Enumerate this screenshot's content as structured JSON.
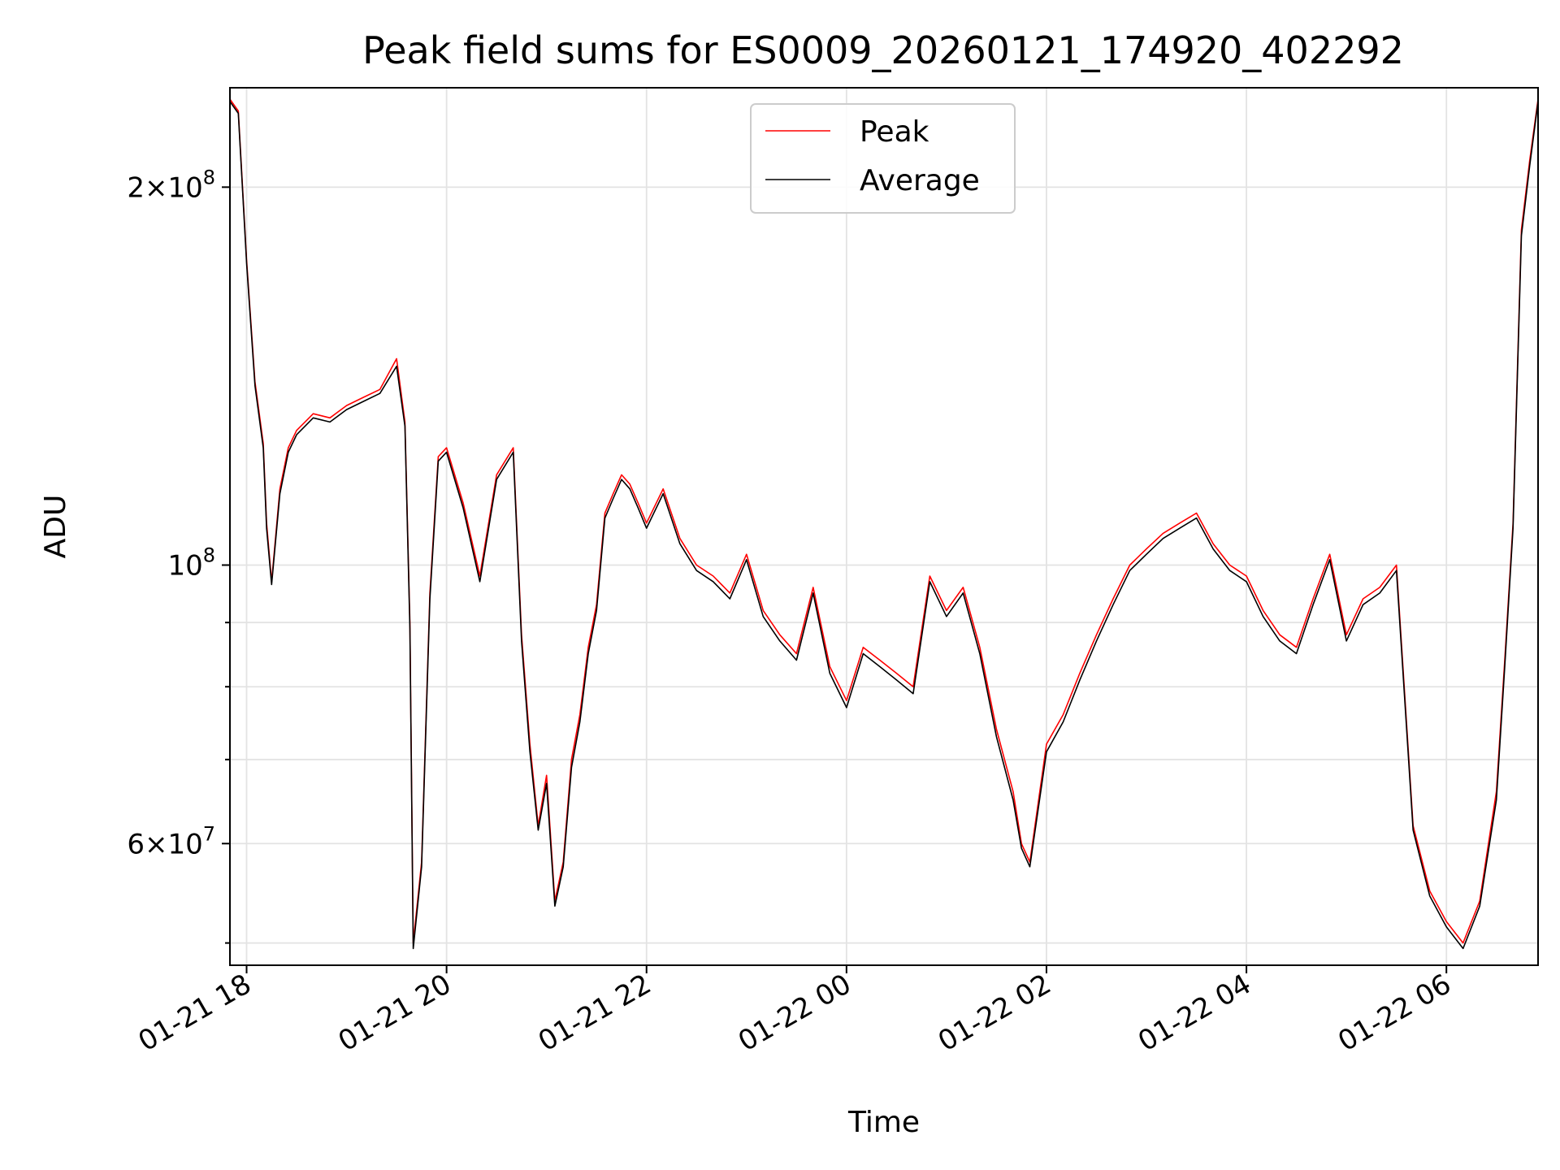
{
  "chart_data": {
    "type": "line",
    "title": "Peak field sums for ES0009_20260121_174920_402292",
    "xlabel": "Time",
    "ylabel": "ADU",
    "yscale": "log",
    "ylim": [
      48000000,
      240000000
    ],
    "xlim": [
      "2026-01-21T17:50",
      "2026-01-22T06:55"
    ],
    "grid": true,
    "legend_position": "top-center",
    "x_ticks": [
      {
        "t": "2026-01-21T18:00",
        "label": "01-21 18"
      },
      {
        "t": "2026-01-21T20:00",
        "label": "01-21 20"
      },
      {
        "t": "2026-01-21T22:00",
        "label": "01-21 22"
      },
      {
        "t": "2026-01-22T00:00",
        "label": "01-22 00"
      },
      {
        "t": "2026-01-22T02:00",
        "label": "01-22 02"
      },
      {
        "t": "2026-01-22T04:00",
        "label": "01-22 04"
      },
      {
        "t": "2026-01-22T06:00",
        "label": "01-22 06"
      }
    ],
    "y_major_ticks": [
      {
        "v": 60000000,
        "mant": "6",
        "exp": "7"
      },
      {
        "v": 100000000,
        "mant": "",
        "exp": "8"
      },
      {
        "v": 200000000,
        "mant": "2",
        "exp": "8"
      }
    ],
    "y_minor_ticks": [
      50000000,
      70000000,
      80000000,
      90000000
    ],
    "series": [
      {
        "name": "Peak",
        "color": "#ff0000",
        "x": [
          "2026-01-21T17:50",
          "2026-01-21T17:55",
          "2026-01-21T18:00",
          "2026-01-21T18:05",
          "2026-01-21T18:10",
          "2026-01-21T18:12",
          "2026-01-21T18:15",
          "2026-01-21T18:20",
          "2026-01-21T18:25",
          "2026-01-21T18:30",
          "2026-01-21T18:40",
          "2026-01-21T18:50",
          "2026-01-21T19:00",
          "2026-01-21T19:10",
          "2026-01-21T19:20",
          "2026-01-21T19:30",
          "2026-01-21T19:35",
          "2026-01-21T19:38",
          "2026-01-21T19:40",
          "2026-01-21T19:45",
          "2026-01-21T19:50",
          "2026-01-21T19:55",
          "2026-01-21T20:00",
          "2026-01-21T20:10",
          "2026-01-21T20:20",
          "2026-01-21T20:30",
          "2026-01-21T20:40",
          "2026-01-21T20:45",
          "2026-01-21T20:50",
          "2026-01-21T20:55",
          "2026-01-21T21:00",
          "2026-01-21T21:05",
          "2026-01-21T21:10",
          "2026-01-21T21:15",
          "2026-01-21T21:20",
          "2026-01-21T21:25",
          "2026-01-21T21:30",
          "2026-01-21T21:35",
          "2026-01-21T21:40",
          "2026-01-21T21:45",
          "2026-01-21T21:50",
          "2026-01-21T21:55",
          "2026-01-21T22:00",
          "2026-01-21T22:10",
          "2026-01-21T22:20",
          "2026-01-21T22:30",
          "2026-01-21T22:40",
          "2026-01-21T22:50",
          "2026-01-21T23:00",
          "2026-01-21T23:10",
          "2026-01-21T23:20",
          "2026-01-21T23:30",
          "2026-01-21T23:40",
          "2026-01-21T23:50",
          "2026-01-22T00:00",
          "2026-01-22T00:10",
          "2026-01-22T00:20",
          "2026-01-22T00:30",
          "2026-01-22T00:40",
          "2026-01-22T00:50",
          "2026-01-22T01:00",
          "2026-01-22T01:10",
          "2026-01-22T01:20",
          "2026-01-22T01:30",
          "2026-01-22T01:40",
          "2026-01-22T01:45",
          "2026-01-22T01:50",
          "2026-01-22T02:00",
          "2026-01-22T02:10",
          "2026-01-22T02:20",
          "2026-01-22T02:30",
          "2026-01-22T02:40",
          "2026-01-22T02:50",
          "2026-01-22T03:00",
          "2026-01-22T03:10",
          "2026-01-22T03:20",
          "2026-01-22T03:30",
          "2026-01-22T03:40",
          "2026-01-22T03:50",
          "2026-01-22T04:00",
          "2026-01-22T04:10",
          "2026-01-22T04:20",
          "2026-01-22T04:30",
          "2026-01-22T04:40",
          "2026-01-22T04:50",
          "2026-01-22T05:00",
          "2026-01-22T05:10",
          "2026-01-22T05:20",
          "2026-01-22T05:30",
          "2026-01-22T05:40",
          "2026-01-22T05:50",
          "2026-01-22T06:00",
          "2026-01-22T06:10",
          "2026-01-22T06:20",
          "2026-01-22T06:30",
          "2026-01-22T06:35",
          "2026-01-22T06:40",
          "2026-01-22T06:45",
          "2026-01-22T06:50",
          "2026-01-22T06:55"
        ],
        "y": [
          235000000,
          230000000,
          175000000,
          140000000,
          125000000,
          108000000,
          97000000,
          115000000,
          124000000,
          128000000,
          132000000,
          131000000,
          134000000,
          136000000,
          138000000,
          146000000,
          130000000,
          90000000,
          50000000,
          58000000,
          95000000,
          122000000,
          124000000,
          112000000,
          98000000,
          118000000,
          124000000,
          88000000,
          72000000,
          62000000,
          68000000,
          54000000,
          58000000,
          70000000,
          76000000,
          86000000,
          93000000,
          110000000,
          114000000,
          118000000,
          116000000,
          112000000,
          108000000,
          115000000,
          105000000,
          100000000,
          98000000,
          95000000,
          102000000,
          92000000,
          88000000,
          85000000,
          96000000,
          83000000,
          78000000,
          86000000,
          84000000,
          82000000,
          80000000,
          98000000,
          92000000,
          96000000,
          86000000,
          74000000,
          66000000,
          60000000,
          58000000,
          72000000,
          76000000,
          82000000,
          88000000,
          94000000,
          100000000,
          103000000,
          106000000,
          108000000,
          110000000,
          104000000,
          100000000,
          98000000,
          92000000,
          88000000,
          86000000,
          94000000,
          102000000,
          88000000,
          94000000,
          96000000,
          100000000,
          62000000,
          55000000,
          52000000,
          50000000,
          54000000,
          66000000,
          84000000,
          108000000,
          185000000,
          210000000,
          235000000
        ]
      },
      {
        "name": "Average",
        "color": "#000000",
        "x": [
          "2026-01-21T17:50",
          "2026-01-21T17:55",
          "2026-01-21T18:00",
          "2026-01-21T18:05",
          "2026-01-21T18:10",
          "2026-01-21T18:12",
          "2026-01-21T18:15",
          "2026-01-21T18:20",
          "2026-01-21T18:25",
          "2026-01-21T18:30",
          "2026-01-21T18:40",
          "2026-01-21T18:50",
          "2026-01-21T19:00",
          "2026-01-21T19:10",
          "2026-01-21T19:20",
          "2026-01-21T19:30",
          "2026-01-21T19:35",
          "2026-01-21T19:38",
          "2026-01-21T19:40",
          "2026-01-21T19:45",
          "2026-01-21T19:50",
          "2026-01-21T19:55",
          "2026-01-21T20:00",
          "2026-01-21T20:10",
          "2026-01-21T20:20",
          "2026-01-21T20:30",
          "2026-01-21T20:40",
          "2026-01-21T20:45",
          "2026-01-21T20:50",
          "2026-01-21T20:55",
          "2026-01-21T21:00",
          "2026-01-21T21:05",
          "2026-01-21T21:10",
          "2026-01-21T21:15",
          "2026-01-21T21:20",
          "2026-01-21T21:25",
          "2026-01-21T21:30",
          "2026-01-21T21:35",
          "2026-01-21T21:40",
          "2026-01-21T21:45",
          "2026-01-21T21:50",
          "2026-01-21T21:55",
          "2026-01-21T22:00",
          "2026-01-21T22:10",
          "2026-01-21T22:20",
          "2026-01-21T22:30",
          "2026-01-21T22:40",
          "2026-01-21T22:50",
          "2026-01-21T23:00",
          "2026-01-21T23:10",
          "2026-01-21T23:20",
          "2026-01-21T23:30",
          "2026-01-21T23:40",
          "2026-01-21T23:50",
          "2026-01-22T00:00",
          "2026-01-22T00:10",
          "2026-01-22T00:20",
          "2026-01-22T00:30",
          "2026-01-22T00:40",
          "2026-01-22T00:50",
          "2026-01-22T01:00",
          "2026-01-22T01:10",
          "2026-01-22T01:20",
          "2026-01-22T01:30",
          "2026-01-22T01:40",
          "2026-01-22T01:45",
          "2026-01-22T01:50",
          "2026-01-22T02:00",
          "2026-01-22T02:10",
          "2026-01-22T02:20",
          "2026-01-22T02:30",
          "2026-01-22T02:40",
          "2026-01-22T02:50",
          "2026-01-22T03:00",
          "2026-01-22T03:10",
          "2026-01-22T03:20",
          "2026-01-22T03:30",
          "2026-01-22T03:40",
          "2026-01-22T03:50",
          "2026-01-22T04:00",
          "2026-01-22T04:10",
          "2026-01-22T04:20",
          "2026-01-22T04:30",
          "2026-01-22T04:40",
          "2026-01-22T04:50",
          "2026-01-22T05:00",
          "2026-01-22T05:10",
          "2026-01-22T05:20",
          "2026-01-22T05:30",
          "2026-01-22T05:40",
          "2026-01-22T05:50",
          "2026-01-22T06:00",
          "2026-01-22T06:10",
          "2026-01-22T06:20",
          "2026-01-22T06:30",
          "2026-01-22T06:35",
          "2026-01-22T06:40",
          "2026-01-22T06:45",
          "2026-01-22T06:50",
          "2026-01-22T06:55"
        ],
        "y": [
          234000000,
          229000000,
          174000000,
          139000000,
          124000000,
          107000000,
          96500000,
          114000000,
          123000000,
          127000000,
          131000000,
          130000000,
          133000000,
          135000000,
          137000000,
          144000000,
          129000000,
          89000000,
          49500000,
          57500000,
          94000000,
          121000000,
          123000000,
          111000000,
          97000000,
          117000000,
          123000000,
          87000000,
          71000000,
          61500000,
          67000000,
          53500000,
          57500000,
          69000000,
          75000000,
          85000000,
          92000000,
          109000000,
          113000000,
          117000000,
          115000000,
          111000000,
          107000000,
          114000000,
          104000000,
          99000000,
          97000000,
          94000000,
          101000000,
          91000000,
          87000000,
          84000000,
          95000000,
          82000000,
          77000000,
          85000000,
          83000000,
          81000000,
          79000000,
          97000000,
          91000000,
          95000000,
          85000000,
          73000000,
          65000000,
          59500000,
          57500000,
          71000000,
          75000000,
          81000000,
          87000000,
          93000000,
          99000000,
          102000000,
          105000000,
          107000000,
          109000000,
          103000000,
          99000000,
          97000000,
          91000000,
          87000000,
          85000000,
          93000000,
          101000000,
          87000000,
          93000000,
          95000000,
          99000000,
          61500000,
          54500000,
          51500000,
          49500000,
          53500000,
          65000000,
          83000000,
          107000000,
          183000000,
          208000000,
          234000000
        ]
      }
    ]
  }
}
